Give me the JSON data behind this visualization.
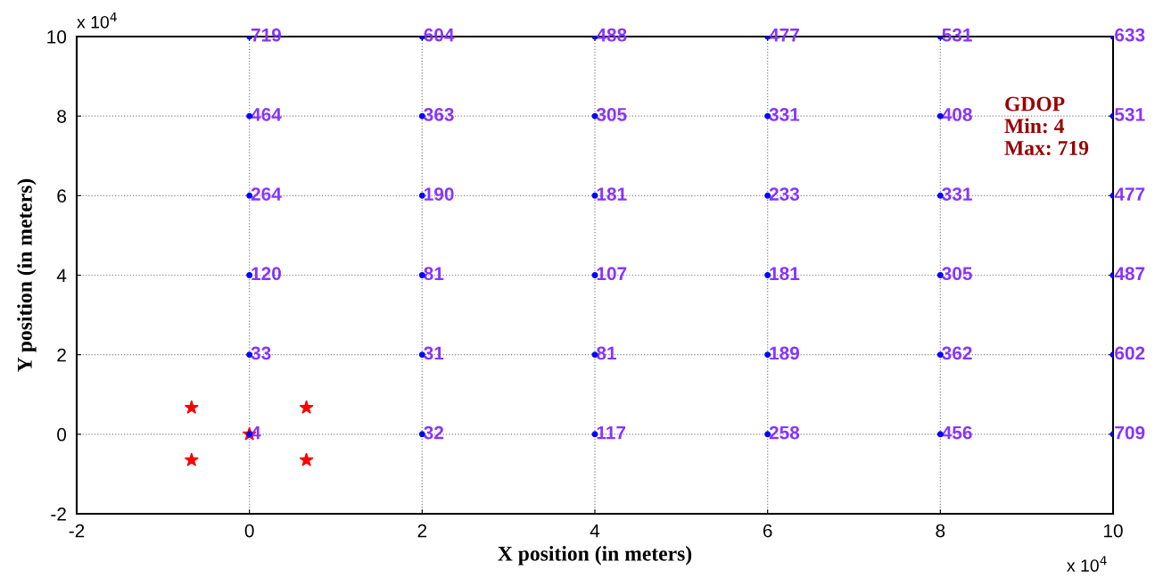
{
  "chart_data": {
    "type": "scatter",
    "xlabel": "X position (in meters)",
    "ylabel": "Y position (in meters)",
    "xlim": [
      -2,
      10
    ],
    "ylim": [
      -2,
      10
    ],
    "xticks": [
      -2,
      0,
      2,
      4,
      6,
      8,
      10
    ],
    "yticks": [
      -2,
      0,
      2,
      4,
      6,
      8,
      10
    ],
    "grid": true,
    "annotations": [
      "x 10$^{4}$",
      "x 10$^{4}$",
      "GDOP\nMin: 4\nMax: 719",
      {
        "text": "719",
        "x": 0,
        "y": 10
      },
      {
        "text": "464",
        "x": 0,
        "y": 8
      },
      {
        "text": "264",
        "x": 0,
        "y": 6
      },
      {
        "text": "120",
        "x": 0,
        "y": 4
      },
      {
        "text": "33",
        "x": 0,
        "y": 2
      },
      {
        "text": "4",
        "x": 0,
        "y": 0
      },
      {
        "text": "604",
        "x": 2,
        "y": 10
      },
      {
        "text": "363",
        "x": 2,
        "y": 8
      },
      {
        "text": "190",
        "x": 2,
        "y": 6
      },
      {
        "text": "81",
        "x": 2,
        "y": 4
      },
      {
        "text": "31",
        "x": 2,
        "y": 2
      },
      {
        "text": "32",
        "x": 2,
        "y": 0
      },
      {
        "text": "488",
        "x": 4,
        "y": 10
      },
      {
        "text": "305",
        "x": 4,
        "y": 8
      },
      {
        "text": "181",
        "x": 4,
        "y": 6
      },
      {
        "text": "107",
        "x": 4,
        "y": 4
      },
      {
        "text": "81",
        "x": 4,
        "y": 2
      },
      {
        "text": "117",
        "x": 4,
        "y": 0
      },
      {
        "text": "477",
        "x": 6,
        "y": 10
      },
      {
        "text": "331",
        "x": 6,
        "y": 8
      },
      {
        "text": "233",
        "x": 6,
        "y": 6
      },
      {
        "text": "181",
        "x": 6,
        "y": 4
      },
      {
        "text": "189",
        "x": 6,
        "y": 2
      },
      {
        "text": "258",
        "x": 6,
        "y": 0
      },
      {
        "text": "531",
        "x": 8,
        "y": 10
      },
      {
        "text": "408",
        "x": 8,
        "y": 8
      },
      {
        "text": "331",
        "x": 8,
        "y": 6
      },
      {
        "text": "305",
        "x": 8,
        "y": 4
      },
      {
        "text": "362",
        "x": 8,
        "y": 2
      },
      {
        "text": "456",
        "x": 8,
        "y": 0
      },
      {
        "text": "633",
        "x": 10,
        "y": 10
      },
      {
        "text": "531",
        "x": 10,
        "y": 8
      },
      {
        "text": "477",
        "x": 10,
        "y": 6
      },
      {
        "text": "487",
        "x": 10,
        "y": 4
      },
      {
        "text": "602",
        "x": 10,
        "y": 2
      },
      {
        "text": "709",
        "x": 10,
        "y": 0
      }
    ],
    "series": [
      {
        "color": "#0000ff",
        "marker": "circle",
        "x": [
          0,
          0,
          0,
          0,
          0,
          0,
          2,
          2,
          2,
          2,
          2,
          2,
          4,
          4,
          4,
          4,
          4,
          4,
          6,
          6,
          6,
          6,
          6,
          6,
          8,
          8,
          8,
          8,
          8,
          8,
          10,
          10,
          10,
          10,
          10,
          10
        ],
        "values": [
          10,
          8,
          6,
          4,
          2,
          0,
          10,
          8,
          6,
          4,
          2,
          0,
          10,
          8,
          6,
          4,
          2,
          0,
          10,
          8,
          6,
          4,
          2,
          0,
          10,
          8,
          6,
          4,
          2,
          0,
          10,
          8,
          6,
          4,
          2,
          0
        ]
      },
      {
        "color": "#ff0000",
        "marker": "star",
        "x": [
          -0.67,
          0.66,
          0,
          -0.67,
          0.66
        ],
        "values": [
          0.67,
          0.67,
          0,
          -0.65,
          -0.65
        ]
      }
    ]
  }
}
